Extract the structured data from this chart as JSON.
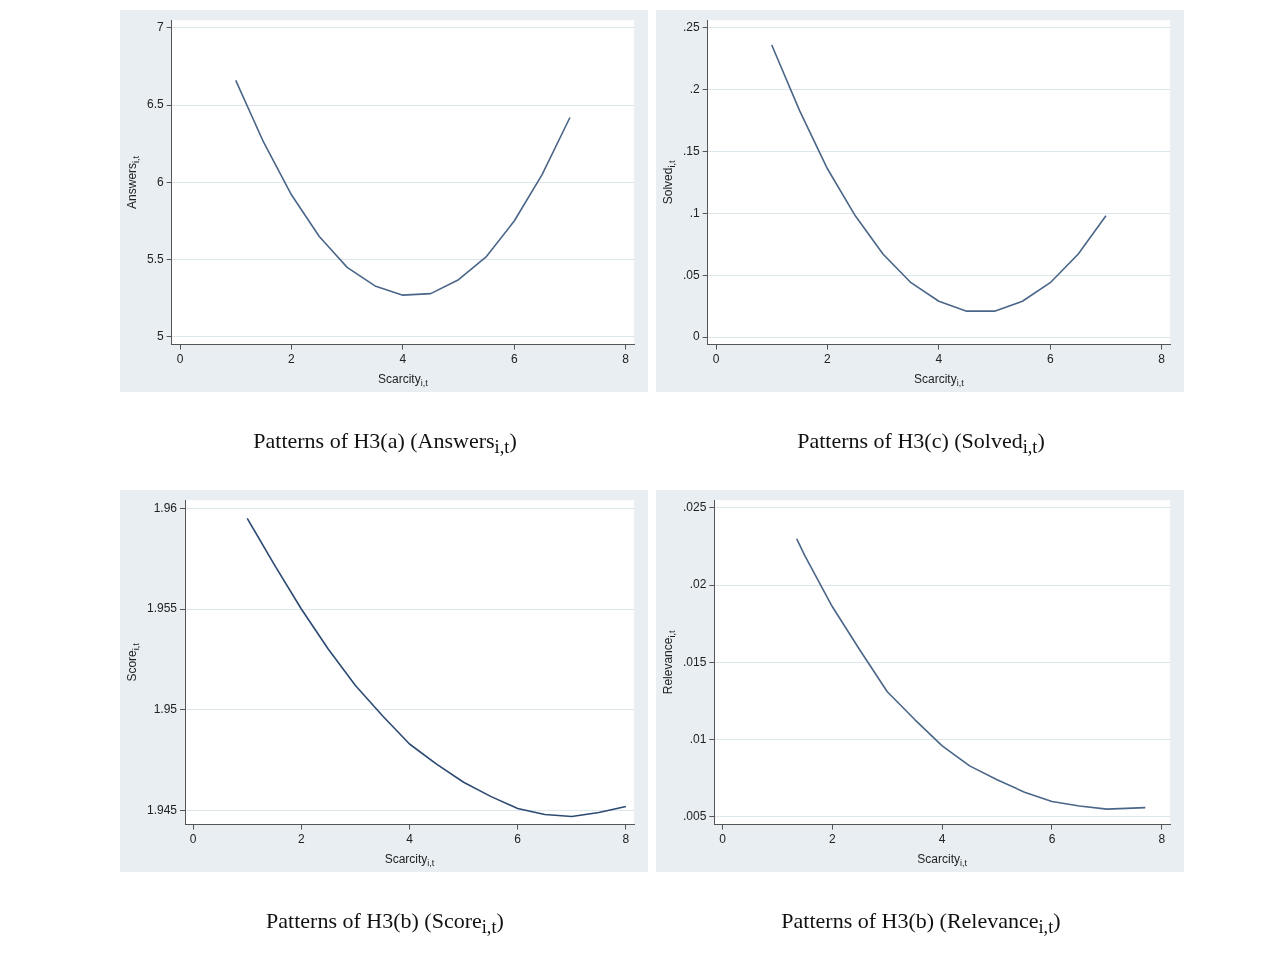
{
  "chart_data": [
    {
      "type": "line",
      "title": "Patterns of H3(a) (Answers$_{i,t}$)",
      "xlabel": "Scarcity$_{i,t}$",
      "ylabel": "Answers$_{i,t}$",
      "xlim": [
        -0.15,
        8.15
      ],
      "xticks": [
        0,
        2,
        4,
        6,
        8
      ],
      "ylim": [
        4.95,
        7.05
      ],
      "yticks": [
        5,
        5.5,
        6,
        6.5,
        7
      ],
      "grid": "y",
      "series": [
        {
          "color": "#4a6688",
          "x": [
            1,
            1.5,
            2,
            2.5,
            3,
            3.5,
            4,
            4.5,
            5,
            5.5,
            6,
            6.5,
            7
          ],
          "values": [
            6.66,
            6.26,
            5.92,
            5.65,
            5.45,
            5.33,
            5.27,
            5.28,
            5.37,
            5.52,
            5.75,
            6.05,
            6.42
          ]
        }
      ]
    },
    {
      "type": "line",
      "title": "Patterns of H3(c) (Solved$_{i,t}$)",
      "xlabel": "Scarcity$_{i,t}$",
      "ylabel": "Solved$_{i,t}$",
      "xlim": [
        -0.15,
        8.15
      ],
      "xticks": [
        0,
        2,
        4,
        6,
        8
      ],
      "ylim": [
        -0.006,
        0.256
      ],
      "yticks": [
        0,
        {
          "value": 0.05,
          "label": ".05"
        },
        {
          "value": 0.1,
          "label": ".1"
        },
        {
          "value": 0.15,
          "label": ".15"
        },
        {
          "value": 0.2,
          "label": ".2"
        },
        {
          "value": 0.25,
          "label": ".25"
        }
      ],
      "grid": "y",
      "series": [
        {
          "color": "#4a6688",
          "x": [
            1,
            1.5,
            2,
            2.5,
            3,
            3.5,
            4,
            4.5,
            5,
            5.5,
            6,
            6.5,
            7
          ],
          "values": [
            0.236,
            0.183,
            0.136,
            0.098,
            0.067,
            0.044,
            0.029,
            0.021,
            0.021,
            0.029,
            0.044,
            0.067,
            0.098
          ]
        }
      ]
    },
    {
      "type": "line",
      "title": "Patterns of H3(b) (Score$_{i,t}$)",
      "xlabel": "Scarcity$_{i,t}$",
      "ylabel": "Score$_{i,t}$",
      "xlim": [
        -0.15,
        8.15
      ],
      "xticks": [
        0,
        2,
        4,
        6,
        8
      ],
      "ylim": [
        1.9443,
        1.9604
      ],
      "yticks": [
        1.945,
        1.95,
        1.955,
        1.96
      ],
      "grid": "y",
      "series": [
        {
          "color": "#2c4a72",
          "x": [
            1,
            1.5,
            2,
            2.5,
            3,
            3.5,
            4,
            4.5,
            5,
            5.5,
            6,
            6.5,
            7,
            7.5,
            8
          ],
          "values": [
            1.9595,
            1.9572,
            1.955,
            1.953,
            1.9512,
            1.9497,
            1.9483,
            1.9473,
            1.9464,
            1.9457,
            1.9451,
            1.9448,
            1.9447,
            1.9449,
            1.9452
          ]
        }
      ]
    },
    {
      "type": "line",
      "title": "Patterns of H3(b) (Relevance$_{i,t}$)",
      "xlabel": "Scarcity$_{i,t}$",
      "ylabel": "Relevance$_{i,t}$",
      "xlim": [
        -0.15,
        8.15
      ],
      "xticks": [
        0,
        2,
        4,
        6,
        8
      ],
      "ylim": [
        0.0045,
        0.0255
      ],
      "yticks": [
        {
          "value": 0.005,
          "label": ".005"
        },
        {
          "value": 0.01,
          "label": ".01"
        },
        {
          "value": 0.015,
          "label": ".015"
        },
        {
          "value": 0.02,
          "label": ".02"
        },
        {
          "value": 0.025,
          "label": ".025"
        }
      ],
      "grid": "y",
      "series": [
        {
          "color": "#4a6688",
          "x": [
            1.35,
            1.5,
            2,
            2.5,
            3,
            3.5,
            4,
            4.5,
            5,
            5.5,
            6,
            6.5,
            7,
            7.7
          ],
          "values": [
            0.023,
            0.0219,
            0.0186,
            0.0158,
            0.0131,
            0.0113,
            0.0096,
            0.0083,
            0.0074,
            0.0066,
            0.006,
            0.0057,
            0.0055,
            0.0056
          ]
        }
      ]
    }
  ]
}
